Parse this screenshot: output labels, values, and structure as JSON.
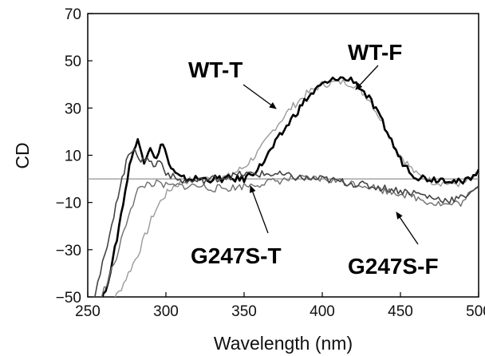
{
  "chart_data": {
    "type": "line",
    "title": "",
    "xlabel": "Wavelength (nm)",
    "ylabel": "CD",
    "xlim": [
      250,
      500
    ],
    "ylim": [
      -50,
      70
    ],
    "xticks": [
      250,
      300,
      350,
      400,
      450,
      500
    ],
    "yticks": [
      -50,
      -30,
      -10,
      10,
      30,
      50,
      70
    ],
    "grid": false,
    "zero_line": true,
    "legend": "inline labels with arrows",
    "series": [
      {
        "name": "WT-T",
        "color": "#9a9a9a",
        "x": [
          250,
          262,
          270,
          276,
          282,
          288,
          292,
          298,
          305,
          312,
          320,
          330,
          340,
          350,
          360,
          370,
          380,
          390,
          400,
          410,
          415,
          420,
          430,
          440,
          450,
          460,
          470,
          480,
          490,
          495,
          500
        ],
        "y": [
          -65,
          -55,
          -48,
          -40,
          -32,
          -22,
          -15,
          -8,
          -3,
          -1,
          0,
          0,
          1,
          5,
          12,
          22,
          30,
          36,
          40,
          41,
          41,
          40,
          34,
          22,
          10,
          2,
          -1,
          -2,
          -2,
          0,
          2
        ]
      },
      {
        "name": "WT-F",
        "color": "#000000",
        "x": [
          250,
          260,
          266,
          270,
          274,
          278,
          282,
          286,
          290,
          294,
          298,
          302,
          306,
          310,
          316,
          322,
          330,
          340,
          350,
          360,
          370,
          380,
          390,
          400,
          405,
          410,
          415,
          420,
          425,
          430,
          440,
          450,
          460,
          470,
          480,
          490,
          495,
          500
        ],
        "y": [
          -65,
          -50,
          -35,
          -20,
          -5,
          10,
          16,
          8,
          14,
          8,
          16,
          6,
          2,
          0,
          0,
          0,
          0,
          0,
          0,
          5,
          15,
          25,
          34,
          40,
          41,
          43,
          42,
          42,
          38,
          34,
          22,
          8,
          1,
          0,
          0,
          -2,
          1,
          4
        ]
      },
      {
        "name": "G247S-T",
        "color": "#6e6e6e",
        "x": [
          250,
          262,
          270,
          276,
          282,
          288,
          294,
          300,
          306,
          312,
          320,
          330,
          340,
          350,
          360,
          370,
          380,
          390,
          400,
          410,
          420,
          430,
          440,
          450,
          460,
          470,
          480,
          490,
          495,
          500
        ],
        "y": [
          -60,
          -45,
          -30,
          -15,
          -5,
          -2,
          -2,
          -3,
          -3,
          -3,
          -3,
          -4,
          -4,
          -3,
          -2,
          -1,
          0,
          0,
          0,
          -1,
          -2,
          -3,
          -5,
          -6,
          -8,
          -10,
          -11,
          -10,
          -6,
          -4
        ]
      },
      {
        "name": "G247S-F",
        "color": "#444444",
        "x": [
          250,
          258,
          264,
          268,
          272,
          276,
          280,
          284,
          288,
          292,
          296,
          300,
          306,
          312,
          320,
          330,
          340,
          350,
          360,
          370,
          380,
          390,
          400,
          410,
          420,
          430,
          440,
          450,
          460,
          470,
          480,
          490,
          495,
          500
        ],
        "y": [
          -60,
          -40,
          -25,
          -10,
          0,
          10,
          14,
          6,
          10,
          5,
          8,
          3,
          0,
          -1,
          -1,
          0,
          1,
          2,
          2,
          2,
          1,
          0,
          0,
          -1,
          -2,
          -3,
          -4,
          -5,
          -6,
          -8,
          -9,
          -8,
          -5,
          -3
        ]
      }
    ],
    "annotations": [
      {
        "series": "WT-T",
        "text": "WT-T"
      },
      {
        "series": "WT-F",
        "text": "WT-F"
      },
      {
        "series": "G247S-T",
        "text": "G247S-T"
      },
      {
        "series": "G247S-F",
        "text": "G247S-F"
      }
    ]
  }
}
